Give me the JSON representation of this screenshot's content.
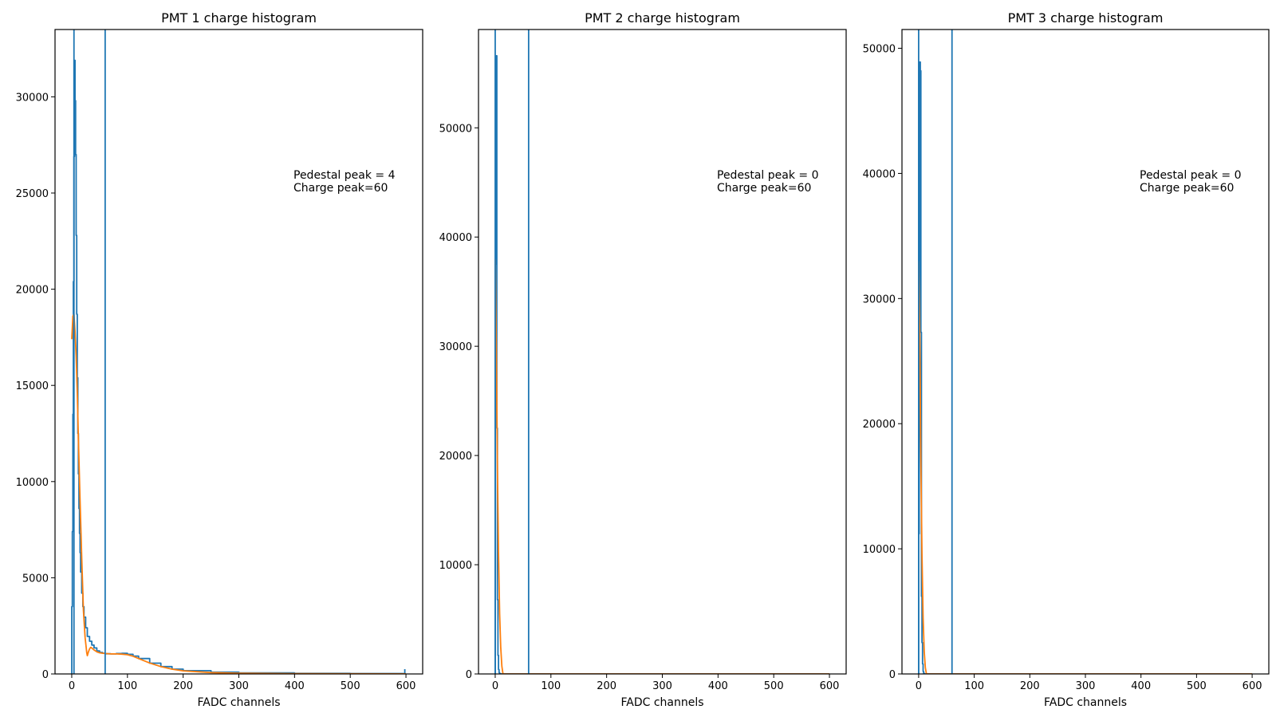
{
  "colors": {
    "histogram": "#1f77b4",
    "fit": "#ff7f0e",
    "axes": "#000000",
    "background": "#ffffff"
  },
  "chart_data": [
    {
      "type": "line",
      "title": "PMT 1 charge histogram",
      "xlabel": "FADC channels",
      "ylabel": "",
      "xlim": [
        -30,
        630
      ],
      "ylim": [
        0,
        33500
      ],
      "xticks": [
        "0",
        "100",
        "200",
        "300",
        "400",
        "500",
        "600"
      ],
      "yticks": [
        "0",
        "5000",
        "10000",
        "15000",
        "20000",
        "25000",
        "30000"
      ],
      "annotation_lines": [
        "Pedestal peak = 4",
        "Charge peak=60"
      ],
      "vlines": [
        4,
        60
      ],
      "grid": false,
      "series": [
        {
          "x": [
            0,
            1,
            2,
            3,
            4,
            5,
            6,
            7,
            8,
            9,
            10,
            11,
            12,
            13,
            14,
            15,
            16,
            18,
            20,
            22,
            25,
            28,
            32,
            36,
            40,
            45,
            50,
            55,
            60,
            70,
            80,
            90,
            100,
            110,
            120,
            140,
            160,
            180,
            200,
            250,
            300,
            400,
            500,
            595,
            598
          ],
          "values": [
            3500,
            7400,
            13500,
            20400,
            26900,
            31900,
            29800,
            27000,
            22800,
            18700,
            15400,
            12500,
            10400,
            8600,
            7300,
            6300,
            5300,
            4200,
            3500,
            2950,
            2400,
            1950,
            1700,
            1500,
            1350,
            1200,
            1120,
            1080,
            1050,
            1040,
            1060,
            1070,
            1020,
            930,
            800,
            560,
            380,
            250,
            170,
            90,
            55,
            30,
            20,
            15,
            250
          ]
        },
        {
          "x": [
            0,
            2,
            4,
            6,
            8,
            10,
            12,
            15,
            18,
            21,
            24,
            27,
            28,
            30,
            32,
            34,
            36,
            40,
            45,
            50,
            55,
            60,
            70,
            80,
            90,
            100,
            110,
            120,
            140,
            160,
            180,
            200,
            250,
            300,
            400,
            500,
            600
          ],
          "values": [
            17400,
            18600,
            18700,
            17800,
            16500,
            14600,
            12200,
            9000,
            6000,
            3300,
            1900,
            1100,
            950,
            1150,
            1300,
            1380,
            1350,
            1250,
            1150,
            1100,
            1080,
            1060,
            1040,
            1040,
            1030,
            1000,
            920,
            800,
            570,
            380,
            250,
            160,
            70,
            35,
            15,
            8,
            5
          ]
        }
      ]
    },
    {
      "type": "line",
      "title": "PMT 2 charge histogram",
      "xlabel": "FADC channels",
      "ylabel": "",
      "xlim": [
        -30,
        630
      ],
      "ylim": [
        0,
        59000
      ],
      "xticks": [
        "0",
        "100",
        "200",
        "300",
        "400",
        "500",
        "600"
      ],
      "yticks": [
        "0",
        "10000",
        "20000",
        "30000",
        "40000",
        "50000"
      ],
      "annotation_lines": [
        "Pedestal peak = 0",
        "Charge peak=60"
      ],
      "vlines": [
        0,
        60
      ],
      "grid": false,
      "series": [
        {
          "x": [
            0,
            1,
            2,
            3,
            4,
            5,
            6,
            7,
            8,
            9,
            10,
            12,
            600
          ],
          "values": [
            37500,
            56500,
            56600,
            22500,
            6800,
            1700,
            400,
            120,
            40,
            10,
            0,
            0,
            0
          ]
        },
        {
          "x": [
            0,
            2,
            4,
            6,
            8,
            10,
            12,
            14,
            16,
            600
          ],
          "values": [
            38000,
            30000,
            19000,
            11000,
            5500,
            2400,
            700,
            0,
            0,
            0
          ]
        }
      ]
    },
    {
      "type": "line",
      "title": "PMT 3 charge histogram",
      "xlabel": "FADC channels",
      "ylabel": "",
      "xlim": [
        -30,
        630
      ],
      "ylim": [
        0,
        51500
      ],
      "xticks": [
        "0",
        "100",
        "200",
        "300",
        "400",
        "500",
        "600"
      ],
      "yticks": [
        "0",
        "10000",
        "20000",
        "30000",
        "40000",
        "50000"
      ],
      "annotation_lines": [
        "Pedestal peak = 0",
        "Charge peak=60"
      ],
      "vlines": [
        0,
        60
      ],
      "grid": false,
      "series": [
        {
          "x": [
            0,
            1,
            2,
            3,
            4,
            5,
            6,
            7,
            8,
            9,
            10,
            12,
            600
          ],
          "values": [
            11200,
            27400,
            48900,
            48200,
            27300,
            6200,
            2500,
            800,
            200,
            60,
            0,
            0,
            0
          ]
        },
        {
          "x": [
            0,
            2,
            4,
            6,
            8,
            10,
            12,
            14,
            16,
            600
          ],
          "values": [
            33000,
            27000,
            17000,
            9500,
            4500,
            1800,
            500,
            0,
            0,
            0
          ]
        }
      ]
    }
  ]
}
